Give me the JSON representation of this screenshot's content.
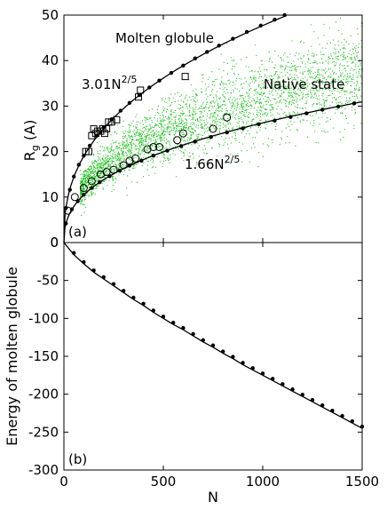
{
  "chart_data": [
    {
      "panel": "(a)",
      "type": "scatter",
      "xlabel": "N",
      "ylabel": {
        "main": "R",
        "sub": "g",
        "rest": " (A)"
      },
      "xlim": [
        0,
        1500
      ],
      "ylim": [
        0,
        50
      ],
      "xticks": [
        0,
        500,
        1000,
        1500
      ],
      "yticks": [
        0,
        10,
        20,
        30,
        40,
        50
      ],
      "grid": false,
      "curve_labels": [
        {
          "coef": "3.01N",
          "exp": "2/5"
        },
        {
          "coef": "1.66N",
          "exp": "2/5"
        }
      ],
      "annotations": [
        "Molten globule",
        "Native state"
      ],
      "series": [
        {
          "marker": "line+dot",
          "formula_coef": 3.01,
          "formula_exp": 0.4,
          "x": [
            10,
            30,
            50,
            75,
            100,
            130,
            165,
            200,
            240,
            285,
            330,
            380,
            430,
            480,
            540,
            600,
            660,
            720,
            780,
            850,
            920,
            990,
            1060,
            1110
          ],
          "y": [
            7.6,
            11.6,
            14.5,
            17.1,
            19.1,
            21.3,
            23.5,
            25.3,
            27.1,
            29.0,
            30.7,
            32.4,
            34.1,
            35.6,
            37.3,
            38.9,
            40.5,
            41.9,
            43.3,
            44.8,
            46.3,
            47.7,
            49.0,
            50.0
          ]
        },
        {
          "marker": "line+dot",
          "formula_coef": 1.66,
          "formula_exp": 0.4,
          "x": [
            10,
            40,
            70,
            100,
            140,
            180,
            230,
            280,
            330,
            390,
            450,
            520,
            590,
            660,
            740,
            820,
            900,
            980,
            1060,
            1140,
            1220,
            1300,
            1380,
            1460
          ],
          "y": [
            4.2,
            7.3,
            9.1,
            10.5,
            12.0,
            13.3,
            14.6,
            15.8,
            16.9,
            18.0,
            19.1,
            20.2,
            21.2,
            22.2,
            23.2,
            24.2,
            25.1,
            26.0,
            26.8,
            27.6,
            28.4,
            29.2,
            29.9,
            30.6
          ]
        },
        {
          "marker": "square",
          "x": [
            110,
            125,
            140,
            150,
            160,
            170,
            185,
            195,
            205,
            215,
            225,
            240,
            265,
            375,
            385,
            610
          ],
          "y": [
            20,
            20,
            23.5,
            25,
            24,
            24.5,
            24.5,
            25,
            24,
            25,
            26.5,
            26.5,
            27,
            32,
            33.5,
            36.5
          ]
        },
        {
          "marker": "circle",
          "x": [
            20,
            55,
            100,
            140,
            185,
            215,
            250,
            300,
            330,
            360,
            420,
            450,
            480,
            570,
            600,
            750,
            820
          ],
          "y": [
            7,
            10,
            12,
            13.5,
            15,
            15.5,
            16,
            17,
            18,
            18.5,
            20.5,
            21,
            21,
            22.5,
            24,
            25,
            27.5
          ]
        },
        {
          "marker": "cloud",
          "color": "#22c322",
          "x_range": [
            80,
            1500
          ],
          "trend_coef": 2.0,
          "trend_exp": 0.4
        }
      ]
    },
    {
      "panel": "(b)",
      "type": "scatter",
      "xlabel": "N",
      "ylabel": "Energy of molten globule",
      "xlim": [
        0,
        1500
      ],
      "ylim": [
        -300,
        0
      ],
      "xticks": [
        0,
        500,
        1000,
        1500
      ],
      "yticks": [
        0,
        -50,
        -100,
        -150,
        -200,
        -250,
        -300
      ],
      "grid": false,
      "series": [
        {
          "marker": "line+dot",
          "x": [
            0,
            50,
            100,
            150,
            200,
            250,
            300,
            350,
            400,
            450,
            500,
            550,
            600,
            650,
            700,
            750,
            800,
            850,
            900,
            950,
            1000,
            1050,
            1100,
            1150,
            1200,
            1250,
            1300,
            1350,
            1400,
            1450,
            1500
          ],
          "y": [
            0,
            -16,
            -28,
            -39,
            -48,
            -57,
            -66,
            -75,
            -83,
            -92,
            -100,
            -108,
            -115,
            -123,
            -131,
            -138,
            -146,
            -153,
            -161,
            -168,
            -175,
            -182,
            -189,
            -196,
            -203,
            -210,
            -217,
            -224,
            -231,
            -238,
            -245
          ]
        }
      ]
    }
  ],
  "colors": {
    "cloud": "#22c322",
    "ink": "#000000"
  }
}
